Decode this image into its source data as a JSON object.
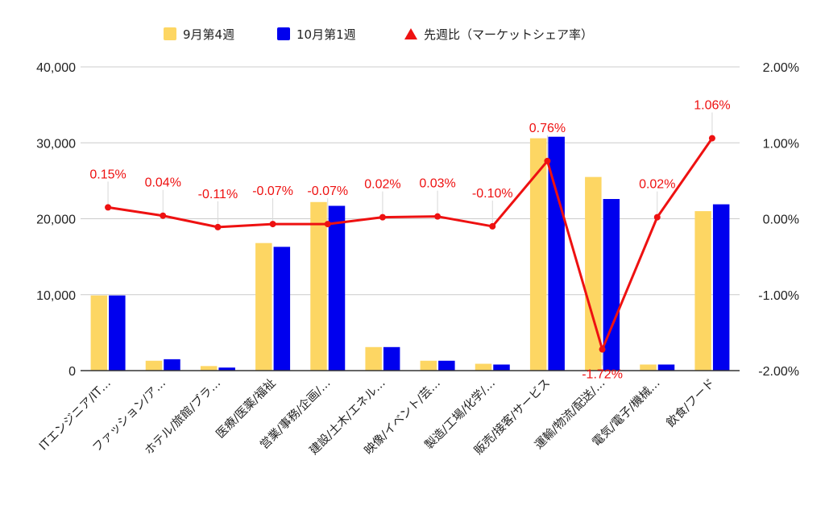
{
  "chart_data": {
    "type": "bar",
    "categories": [
      "ITエンジニア/IT…",
      "ファッション/ア…",
      "ホテル/旅館/ブラ…",
      "医療/医薬/福祉",
      "営業/事務/企画/…",
      "建設/土木/エネル…",
      "映像/イベント/芸…",
      "製造/工場/化学/…",
      "販売/接客/サービス",
      "運輸/物流/配送/…",
      "電気/電子/機械…",
      "飲食/フード"
    ],
    "series": [
      {
        "name": "9月第4週",
        "color": "#fdd663",
        "values": [
          9900,
          1300,
          600,
          16800,
          22200,
          3100,
          1300,
          900,
          30600,
          25500,
          800,
          21000
        ]
      },
      {
        "name": "10月第1週",
        "color": "#0000ee",
        "values": [
          9900,
          1500,
          400,
          16300,
          21700,
          3100,
          1300,
          800,
          30800,
          22600,
          800,
          21900
        ]
      }
    ],
    "line_series": {
      "name": "先週比（マーケットシェア率）",
      "color": "#ee1111",
      "axis": "right",
      "values": [
        0.15,
        0.04,
        -0.11,
        -0.07,
        -0.07,
        0.02,
        0.03,
        -0.1,
        0.76,
        -1.72,
        0.02,
        1.06
      ],
      "labels": [
        "0.15%",
        "0.04%",
        "-0.11%",
        "-0.07%",
        "-0.07%",
        "0.02%",
        "0.03%",
        "-0.10%",
        "0.76%",
        "-1.72%",
        "0.02%",
        "1.06%"
      ]
    },
    "left_axis": {
      "ylim": [
        0,
        40000
      ],
      "ticks": [
        "0",
        "10,000",
        "20,000",
        "30,000",
        "40,000"
      ]
    },
    "right_axis": {
      "ylim": [
        -2,
        2
      ],
      "ticks": [
        "-2.00%",
        "-1.00%",
        "0.00%",
        "1.00%",
        "2.00%"
      ]
    },
    "grid": true,
    "legend_position": "top-center"
  }
}
